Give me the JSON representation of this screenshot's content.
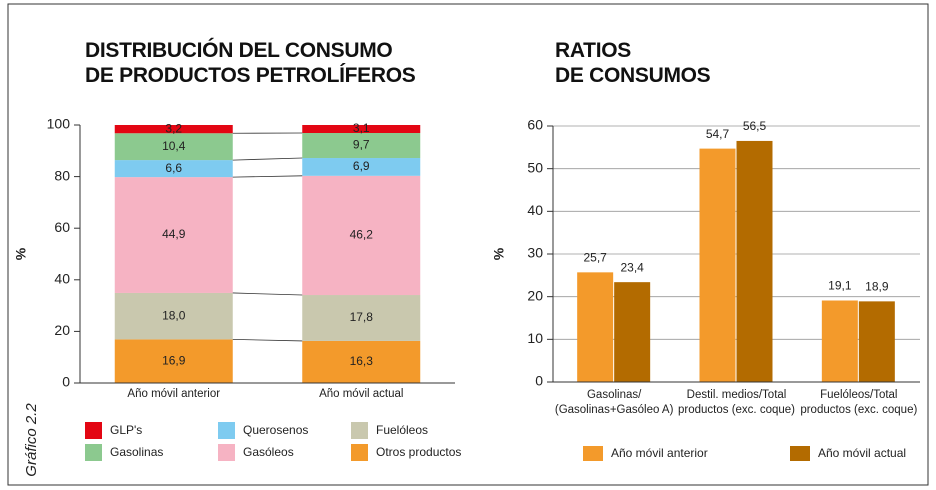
{
  "caption": "Gráfico 2.2",
  "chart_data": [
    {
      "type": "stacked_bar",
      "title": "DISTRIBUCIÓN DEL CONSUMO\nDE PRODUCTOS PETROLÍFEROS",
      "ylabel": "%",
      "categories": [
        "Año móvil anterior",
        "Año  móvil actual"
      ],
      "series": [
        {
          "name": "Otros productos",
          "color": "#f39a2b",
          "values": [
            16.9,
            16.3
          ],
          "value_labels": [
            "16,9",
            "16,3"
          ]
        },
        {
          "name": "Fuelóleos",
          "color": "#c9c8ae",
          "values": [
            18.0,
            17.8
          ],
          "value_labels": [
            "18,0",
            "17,8"
          ]
        },
        {
          "name": "Gasóleos",
          "color": "#f6b3c3",
          "values": [
            44.9,
            46.2
          ],
          "value_labels": [
            "44,9",
            "46,2"
          ]
        },
        {
          "name": "Querosenos",
          "color": "#7ecbf0",
          "values": [
            6.6,
            6.9
          ],
          "value_labels": [
            "6,6",
            "6,9"
          ]
        },
        {
          "name": "Gasolinas",
          "color": "#8cc98f",
          "values": [
            10.4,
            9.7
          ],
          "value_labels": [
            "10,4",
            "9,7"
          ]
        },
        {
          "name": "GLP's",
          "color": "#e30613",
          "values": [
            3.2,
            3.1
          ],
          "value_labels": [
            "3,2",
            "3,1"
          ]
        }
      ],
      "ylim": [
        0,
        100
      ],
      "yticks": [
        0,
        20,
        40,
        60,
        80,
        100
      ],
      "grid": false
    },
    {
      "type": "bar",
      "title": "RATIOS\nDE CONSUMOS",
      "ylabel": "%",
      "categories": [
        "Gasolinas/\n(Gasolinas+Gasóleo A)",
        "Destil. medios/Total\nproductos (exc. coque)",
        "Fuelóleos/Total\nproductos (exc. coque)"
      ],
      "series": [
        {
          "name": "Año móvil anterior",
          "color": "#f39a2b",
          "values": [
            25.7,
            54.7,
            19.1
          ],
          "value_labels": [
            "25,7",
            "54,7",
            "19,1"
          ]
        },
        {
          "name": "Año móvil actual",
          "color": "#b36b00",
          "values": [
            23.4,
            56.5,
            18.9
          ],
          "value_labels": [
            "23,4",
            "56,5",
            "18,9"
          ]
        }
      ],
      "ylim": [
        0,
        60
      ],
      "yticks": [
        0,
        10,
        20,
        30,
        40,
        50,
        60
      ],
      "grid": true
    }
  ]
}
